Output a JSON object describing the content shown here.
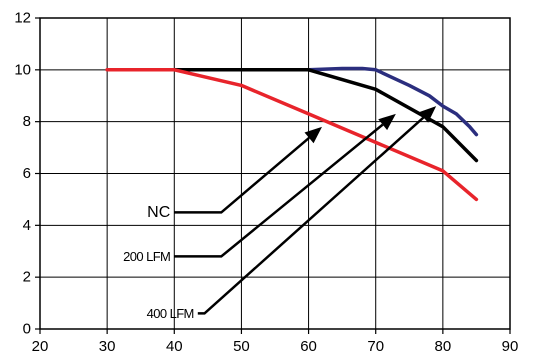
{
  "chart_data": {
    "type": "line",
    "title": "",
    "xlabel": "",
    "ylabel": "",
    "xlim": [
      20,
      90
    ],
    "ylim": [
      0,
      12
    ],
    "xticks": [
      20,
      30,
      40,
      50,
      60,
      70,
      80,
      90
    ],
    "yticks": [
      0,
      2,
      4,
      6,
      8,
      10,
      12
    ],
    "grid": true,
    "legend": "none",
    "series": [
      {
        "name": "400 LFM",
        "color": "#2b2e7e",
        "x": [
          40,
          60,
          65,
          68,
          70,
          75,
          78,
          80,
          82,
          84,
          85
        ],
        "y": [
          10,
          10,
          10.05,
          10.05,
          10.0,
          9.4,
          9.0,
          8.6,
          8.3,
          7.8,
          7.5
        ]
      },
      {
        "name": "200 LFM",
        "color": "#000000",
        "x": [
          40,
          60,
          70,
          80,
          85
        ],
        "y": [
          10,
          10,
          9.25,
          7.8,
          6.5
        ]
      },
      {
        "name": "NC",
        "color": "#e8242b",
        "x": [
          30,
          40,
          50,
          60,
          70,
          80,
          85
        ],
        "y": [
          10,
          10,
          9.4,
          8.3,
          7.2,
          6.1,
          5.0
        ]
      }
    ],
    "annotations": [
      {
        "label": "NC",
        "label_size": "large",
        "callout_x": [
          40,
          47,
          62
        ],
        "callout_y": [
          4.5,
          4.5,
          7.8
        ]
      },
      {
        "label": "200 LFM",
        "label_size": "small",
        "callout_x": [
          40,
          47,
          73
        ],
        "callout_y": [
          2.8,
          2.8,
          8.3
        ]
      },
      {
        "label": "400 LFM",
        "label_size": "small",
        "callout_x": [
          43.5,
          44.5,
          79
        ],
        "callout_y": [
          0.6,
          0.6,
          8.6
        ]
      }
    ]
  }
}
